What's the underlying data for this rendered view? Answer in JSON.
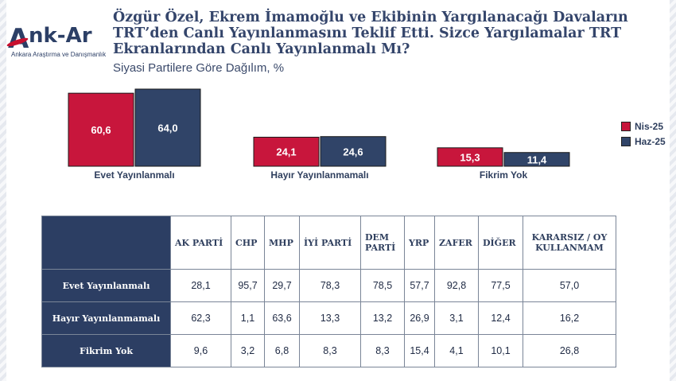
{
  "logo": {
    "mark": "A",
    "name": "nk-Ar",
    "tagline": "Ankara Araştırma ve Danışmanlık"
  },
  "header": {
    "title": "Özgür Özel, Ekrem İmamoğlu ve Ekibinin Yargılanacağı Davaların TRT’den Canlı Yayınlanmasını Teklif Etti. Sizce Yargılamalar  TRT Ekranlarından Canlı Yayınlanmalı Mı?",
    "subtitle": "Siyasi Partilere Göre Dağılım, %"
  },
  "colors": {
    "nis": "#c8163c",
    "haz": "#304468",
    "header_fill": "#2c3e63"
  },
  "chart_data": {
    "type": "bar",
    "categories": [
      "Evet Yayınlanmalı",
      "Hayır Yayınlanmamalı",
      "Fikrim Yok"
    ],
    "series": [
      {
        "name": "Nis-25",
        "values": [
          60.6,
          24.1,
          15.3
        ],
        "labels": [
          "60,6",
          "24,1",
          "15,3"
        ]
      },
      {
        "name": "Haz-25",
        "values": [
          64.0,
          24.6,
          11.4
        ],
        "labels": [
          "64,0",
          "24,6",
          "11,4"
        ]
      }
    ],
    "legend_position": "right",
    "grid": false
  },
  "table": {
    "columns": [
      "AK PARTİ",
      "CHP",
      "MHP",
      "İYİ PARTİ",
      "DEM PARTİ",
      "YRP",
      "ZAFER",
      "DİĞER",
      "KARARSIZ / OY KULLANMAM"
    ],
    "rows": [
      {
        "label": "Evet Yayınlanmalı",
        "values": [
          "28,1",
          "95,7",
          "29,7",
          "78,3",
          "78,5",
          "57,7",
          "92,8",
          "77,5",
          "57,0"
        ]
      },
      {
        "label": "Hayır Yayınlanmamalı",
        "values": [
          "62,3",
          "1,1",
          "63,6",
          "13,3",
          "13,2",
          "26,9",
          "3,1",
          "12,4",
          "16,2"
        ]
      },
      {
        "label": "Fikrim Yok",
        "values": [
          "9,6",
          "3,2",
          "6,8",
          "8,3",
          "8,3",
          "15,4",
          "4,1",
          "10,1",
          "26,8"
        ]
      }
    ]
  }
}
